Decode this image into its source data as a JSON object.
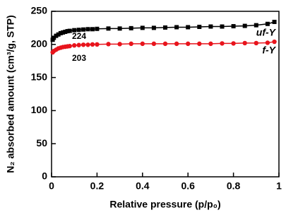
{
  "chart_data": {
    "type": "scatter-line",
    "xlabel": "Relative pressure (p/p₀)",
    "ylabel": "N₂ absorbed amount (cm³/g, STP)",
    "x": [
      0.005,
      0.01,
      0.02,
      0.03,
      0.04,
      0.05,
      0.06,
      0.07,
      0.08,
      0.1,
      0.12,
      0.14,
      0.16,
      0.18,
      0.2,
      0.25,
      0.3,
      0.35,
      0.4,
      0.45,
      0.5,
      0.55,
      0.6,
      0.65,
      0.7,
      0.75,
      0.8,
      0.85,
      0.9,
      0.95,
      0.98
    ],
    "series": [
      {
        "name": "uf-Y",
        "color": "#000000",
        "marker": "square",
        "values": [
          207,
          210,
          213,
          215,
          217,
          218,
          219,
          220,
          220.5,
          221.5,
          222,
          222.5,
          223,
          223,
          223.5,
          224,
          224,
          224.5,
          225,
          225,
          225.5,
          226,
          226,
          226.5,
          227,
          227,
          227.5,
          228,
          229,
          231,
          234
        ]
      },
      {
        "name": "f-Y",
        "color": "#e8141c",
        "marker": "circle",
        "values": [
          188,
          190,
          192,
          194,
          195,
          196,
          196.5,
          197,
          197.5,
          198.5,
          199,
          199.5,
          199.5,
          200,
          200,
          200.5,
          200.5,
          201,
          201,
          201,
          201,
          201,
          201,
          201,
          201,
          201.5,
          201.5,
          202,
          202,
          202.5,
          204
        ]
      }
    ],
    "annotations": [
      {
        "text": "224",
        "color": "#000000"
      },
      {
        "text": "203",
        "color": "#e8141c"
      }
    ],
    "xlim": [
      0,
      1
    ],
    "xticks": [
      0,
      0.2,
      0.4,
      0.6,
      0.8,
      1
    ],
    "ylim": [
      0,
      250
    ],
    "yticks": [
      0,
      50,
      100,
      150,
      200,
      250
    ]
  }
}
